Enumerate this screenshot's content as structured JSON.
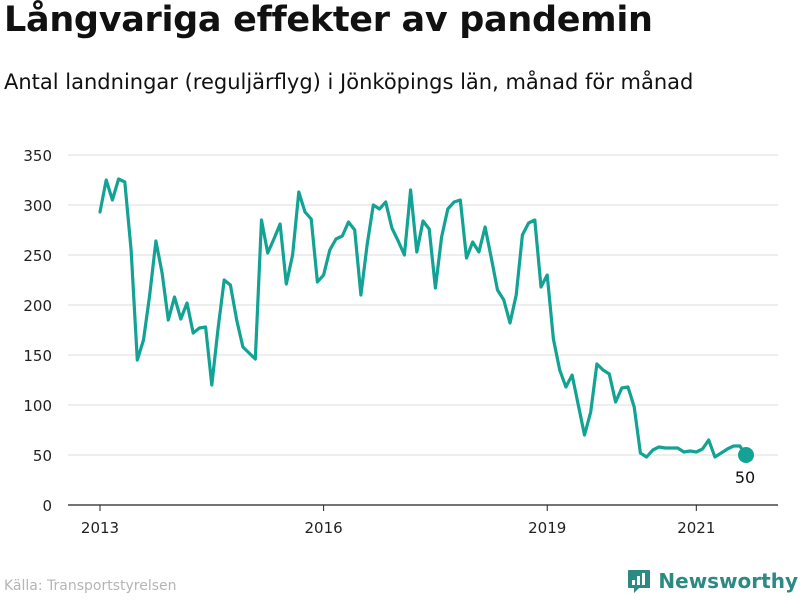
{
  "title": "Långvariga effekter av pandemin",
  "subtitle": "Antal landningar (reguljärflyg) i Jönköpings län, månad för månad",
  "source": "Källa: Transportstyrelsen",
  "brand": {
    "name": "Newsworthy",
    "icon": "bar-chart-logo-icon",
    "color": "#2b8a84"
  },
  "colors": {
    "line": "#13a394",
    "grid": "#dddddd",
    "axis": "#222222"
  },
  "chart_data": {
    "type": "line",
    "title": "Långvariga effekter av pandemin",
    "subtitle": "Antal landningar (reguljärflyg) i Jönköpings län, månad för månad",
    "xlabel": "",
    "ylabel": "",
    "ylim": [
      0,
      350
    ],
    "yticks": [
      0,
      50,
      100,
      150,
      200,
      250,
      300,
      350
    ],
    "xticks": [
      "2013",
      "2016",
      "2019",
      "2021"
    ],
    "xstart": "2013-01",
    "grid": true,
    "last_label": "50",
    "x": [
      "2013-01",
      "2013-02",
      "2013-03",
      "2013-04",
      "2013-05",
      "2013-06",
      "2013-07",
      "2013-08",
      "2013-09",
      "2013-10",
      "2013-11",
      "2013-12",
      "2014-01",
      "2014-02",
      "2014-03",
      "2014-04",
      "2014-05",
      "2014-06",
      "2014-07",
      "2014-08",
      "2014-09",
      "2014-10",
      "2014-11",
      "2014-12",
      "2015-01",
      "2015-02",
      "2015-03",
      "2015-04",
      "2015-05",
      "2015-06",
      "2015-07",
      "2015-08",
      "2015-09",
      "2015-10",
      "2015-11",
      "2015-12",
      "2016-01",
      "2016-02",
      "2016-03",
      "2016-04",
      "2016-05",
      "2016-06",
      "2016-07",
      "2016-08",
      "2016-09",
      "2016-10",
      "2016-11",
      "2016-12",
      "2017-01",
      "2017-02",
      "2017-03",
      "2017-04",
      "2017-05",
      "2017-06",
      "2017-07",
      "2017-08",
      "2017-09",
      "2017-10",
      "2017-11",
      "2017-12",
      "2018-01",
      "2018-02",
      "2018-03",
      "2018-04",
      "2018-05",
      "2018-06",
      "2018-07",
      "2018-08",
      "2018-09",
      "2018-10",
      "2018-11",
      "2018-12",
      "2019-01",
      "2019-02",
      "2019-03",
      "2019-04",
      "2019-05",
      "2019-06",
      "2019-07",
      "2019-08",
      "2019-09",
      "2019-10",
      "2019-11",
      "2019-12",
      "2020-01",
      "2020-02",
      "2020-03",
      "2020-04",
      "2020-05",
      "2020-06",
      "2020-07",
      "2020-08",
      "2020-09",
      "2020-10",
      "2020-11",
      "2020-12",
      "2021-01",
      "2021-02",
      "2021-03",
      "2021-04",
      "2021-05",
      "2021-06",
      "2021-07",
      "2021-08",
      "2021-09"
    ],
    "values": [
      293,
      325,
      305,
      326,
      323,
      255,
      145,
      165,
      210,
      264,
      232,
      185,
      208,
      186,
      202,
      172,
      177,
      178,
      120,
      176,
      225,
      220,
      185,
      158,
      152,
      146,
      285,
      252,
      266,
      281,
      221,
      250,
      313,
      293,
      286,
      223,
      230,
      255,
      266,
      269,
      283,
      275,
      210,
      260,
      300,
      296,
      303,
      277,
      264,
      250,
      315,
      253,
      284,
      276,
      217,
      268,
      296,
      303,
      305,
      247,
      263,
      253,
      278,
      247,
      215,
      205,
      182,
      210,
      270,
      282,
      285,
      218,
      230,
      166,
      135,
      118,
      130,
      100,
      70,
      93,
      141,
      135,
      131,
      103,
      117,
      118,
      98,
      52,
      48,
      55,
      58,
      57,
      57,
      57,
      53,
      54,
      53,
      56,
      65,
      48,
      52,
      56,
      59,
      59,
      50
    ]
  }
}
